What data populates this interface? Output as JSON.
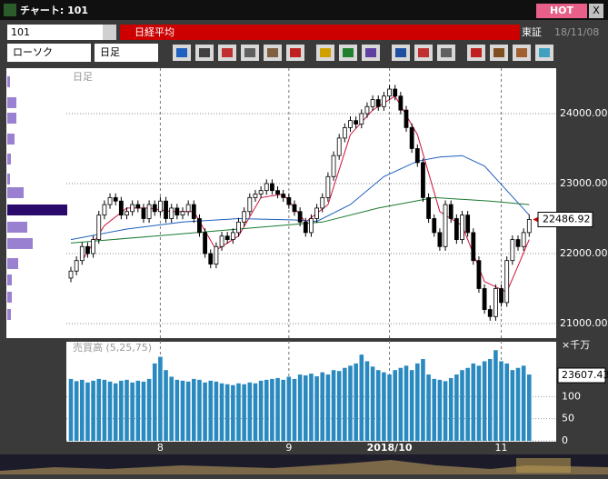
{
  "window": {
    "title": "チャート: 101",
    "hot": "HOT",
    "close": "X"
  },
  "toolbar": {
    "code": "101",
    "name": "日経平均",
    "market": "東証",
    "date": "18/11/08",
    "chart_kind": "ローソク",
    "period": "日足"
  },
  "chart_data": {
    "type": "candlestick",
    "period_label": "日足",
    "ylim": [
      20792,
      24649
    ],
    "yticks": [
      {
        "value": 21000,
        "label": "21000.00"
      },
      {
        "value": 22000,
        "label": "22000.00"
      },
      {
        "value": 23000,
        "label": "23000.00"
      },
      {
        "value": 24000,
        "label": "24000.00"
      }
    ],
    "xticks": [
      {
        "value": 16,
        "label": "8"
      },
      {
        "value": 39,
        "label": "9"
      },
      {
        "value": 57,
        "label": "2018/10"
      },
      {
        "value": 77,
        "label": "11"
      }
    ],
    "candles": [
      [
        21650,
        21810,
        21590,
        21750
      ],
      [
        21750,
        21960,
        21690,
        21900
      ],
      [
        21900,
        22160,
        21840,
        22100
      ],
      [
        22100,
        22160,
        21940,
        22000
      ],
      [
        22000,
        22260,
        21940,
        22200
      ],
      [
        22200,
        22610,
        22140,
        22550
      ],
      [
        22550,
        22760,
        22490,
        22700
      ],
      [
        22700,
        22860,
        22640,
        22800
      ],
      [
        22800,
        22860,
        22690,
        22750
      ],
      [
        22750,
        22810,
        22490,
        22550
      ],
      [
        22550,
        22660,
        22490,
        22600
      ],
      [
        22600,
        22760,
        22540,
        22700
      ],
      [
        22700,
        22760,
        22590,
        22650
      ],
      [
        22650,
        22710,
        22440,
        22500
      ],
      [
        22500,
        22760,
        22440,
        22700
      ],
      [
        22700,
        22760,
        22540,
        22600
      ],
      [
        22600,
        22810,
        22540,
        22750
      ],
      [
        22750,
        22810,
        22440,
        22500
      ],
      [
        22500,
        22710,
        22440,
        22650
      ],
      [
        22650,
        22710,
        22490,
        22550
      ],
      [
        22550,
        22660,
        22490,
        22600
      ],
      [
        22600,
        22760,
        22540,
        22700
      ],
      [
        22700,
        22760,
        22440,
        22500
      ],
      [
        22500,
        22560,
        22240,
        22300
      ],
      [
        22300,
        22360,
        21940,
        22000
      ],
      [
        22000,
        22060,
        21790,
        21850
      ],
      [
        21850,
        22160,
        21790,
        22100
      ],
      [
        22100,
        22310,
        22040,
        22250
      ],
      [
        22250,
        22310,
        22140,
        22200
      ],
      [
        22200,
        22360,
        22140,
        22300
      ],
      [
        22300,
        22510,
        22240,
        22450
      ],
      [
        22450,
        22660,
        22390,
        22600
      ],
      [
        22600,
        22860,
        22540,
        22800
      ],
      [
        22800,
        22910,
        22740,
        22850
      ],
      [
        22850,
        22960,
        22790,
        22900
      ],
      [
        22900,
        23060,
        22840,
        23000
      ],
      [
        23000,
        23060,
        22840,
        22900
      ],
      [
        22900,
        22960,
        22790,
        22850
      ],
      [
        22850,
        22910,
        22740,
        22800
      ],
      [
        22800,
        22860,
        22640,
        22700
      ],
      [
        22700,
        22760,
        22540,
        22600
      ],
      [
        22600,
        22660,
        22390,
        22450
      ],
      [
        22450,
        22510,
        22240,
        22300
      ],
      [
        22300,
        22560,
        22240,
        22500
      ],
      [
        22500,
        22710,
        22440,
        22650
      ],
      [
        22650,
        22860,
        22590,
        22800
      ],
      [
        22800,
        23160,
        22740,
        23100
      ],
      [
        23100,
        23460,
        23040,
        23400
      ],
      [
        23400,
        23710,
        23340,
        23650
      ],
      [
        23650,
        23860,
        23590,
        23800
      ],
      [
        23800,
        23960,
        23740,
        23900
      ],
      [
        23900,
        23960,
        23790,
        23850
      ],
      [
        23850,
        24060,
        23790,
        24000
      ],
      [
        24000,
        24160,
        23940,
        24100
      ],
      [
        24100,
        24260,
        24040,
        24200
      ],
      [
        24200,
        24260,
        24040,
        24100
      ],
      [
        24100,
        24310,
        24040,
        24250
      ],
      [
        24250,
        24410,
        24190,
        24350
      ],
      [
        24350,
        24410,
        24190,
        24250
      ],
      [
        24250,
        24310,
        23990,
        24050
      ],
      [
        24050,
        24110,
        23740,
        23800
      ],
      [
        23800,
        23860,
        23440,
        23500
      ],
      [
        23500,
        23560,
        23240,
        23300
      ],
      [
        23300,
        23360,
        22740,
        22800
      ],
      [
        22800,
        22860,
        22440,
        22500
      ],
      [
        22500,
        22560,
        22240,
        22300
      ],
      [
        22300,
        22360,
        22040,
        22100
      ],
      [
        22100,
        22760,
        22040,
        22700
      ],
      [
        22700,
        22760,
        22440,
        22500
      ],
      [
        22500,
        22560,
        22140,
        22200
      ],
      [
        22200,
        22610,
        22140,
        22550
      ],
      [
        22550,
        22610,
        22240,
        22300
      ],
      [
        22300,
        22360,
        21840,
        21900
      ],
      [
        21900,
        21960,
        21440,
        21500
      ],
      [
        21500,
        21560,
        21140,
        21200
      ],
      [
        21200,
        21260,
        21040,
        21100
      ],
      [
        21100,
        21560,
        21040,
        21500
      ],
      [
        21500,
        21560,
        21240,
        21300
      ],
      [
        21300,
        21960,
        21240,
        21900
      ],
      [
        21900,
        22260,
        21840,
        22200
      ],
      [
        22200,
        22260,
        22040,
        22100
      ],
      [
        22100,
        22360,
        22040,
        22300
      ],
      [
        22300,
        22560,
        22240,
        22486.92
      ]
    ],
    "moving_averages": [
      {
        "color": "#d0103a",
        "x": [
          2,
          6,
          10,
          14,
          18,
          22,
          26,
          30,
          34,
          38,
          42,
          46,
          50,
          54,
          58,
          62,
          66,
          70,
          74,
          78,
          82
        ],
        "values": [
          21900,
          22400,
          22650,
          22650,
          22600,
          22600,
          22050,
          22250,
          22800,
          22850,
          22450,
          22700,
          23700,
          24050,
          24250,
          23700,
          22600,
          22400,
          21600,
          21450,
          22200
        ]
      },
      {
        "color": "#1f5fbf",
        "x": [
          0,
          10,
          20,
          30,
          40,
          44,
          50,
          56,
          62,
          66,
          70,
          74,
          78,
          82
        ],
        "values": [
          22200,
          22350,
          22450,
          22500,
          22480,
          22460,
          22700,
          23100,
          23320,
          23380,
          23400,
          23250,
          22900,
          22550
        ]
      },
      {
        "color": "#1a7a30",
        "x": [
          0,
          15,
          30,
          45,
          55,
          65,
          75,
          82
        ],
        "values": [
          22150,
          22250,
          22350,
          22450,
          22650,
          22800,
          22750,
          22700
        ]
      }
    ],
    "price_profile": {
      "prices": [
        24455,
        24156,
        23935,
        23636,
        23350,
        23065,
        22870,
        22623,
        22377,
        22143,
        21857,
        21623,
        21377,
        21130
      ],
      "values": [
        3,
        10,
        10,
        8,
        4,
        3,
        18,
        66,
        22,
        28,
        12,
        5,
        5,
        4
      ],
      "color": "#9a80d0",
      "highlight_color": "#2a0a6a",
      "highlight_index": 7
    },
    "volume": {
      "title": "売買高 (5,25,75)",
      "unit": "×千万",
      "label": "23607.43",
      "color": "#2a8ac0",
      "ylim": [
        0,
        220
      ],
      "yticks": [
        0,
        50,
        100
      ],
      "values": [
        140,
        135,
        138,
        132,
        136,
        140,
        138,
        134,
        130,
        136,
        138,
        132,
        136,
        134,
        140,
        175,
        190,
        160,
        145,
        138,
        136,
        134,
        140,
        138,
        132,
        136,
        134,
        130,
        128,
        126,
        130,
        128,
        132,
        130,
        136,
        138,
        140,
        142,
        138,
        145,
        140,
        150,
        148,
        152,
        146,
        155,
        150,
        160,
        158,
        165,
        170,
        175,
        195,
        180,
        168,
        160,
        155,
        150,
        160,
        165,
        170,
        160,
        175,
        185,
        150,
        140,
        138,
        135,
        142,
        150,
        160,
        165,
        175,
        170,
        180,
        185,
        205,
        180,
        175,
        160,
        165,
        170,
        150
      ]
    }
  }
}
